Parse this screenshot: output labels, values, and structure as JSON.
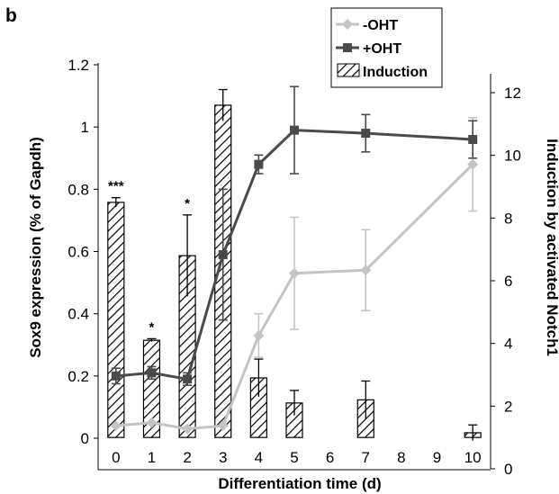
{
  "panel_label": "b",
  "colors": {
    "minus_oht": "#c4c4c4",
    "plus_oht": "#4a4a4a",
    "axis": "#000000"
  },
  "chart_data": {
    "type": "bar-line",
    "xlabel": "Differentiation time (d)",
    "ylabel": "Sox9 expression (% of Gapdh)",
    "y2label": "Induction by activated Notch1",
    "categories": [
      "0",
      "1",
      "2",
      "3",
      "4",
      "5",
      "6",
      "7",
      "8",
      "9",
      "10"
    ],
    "ylim": [
      0,
      1.2
    ],
    "yticks": [
      "0",
      "0.2",
      "0.4",
      "0.6",
      "0.8",
      "1",
      "1.2"
    ],
    "y2lim": [
      0,
      13
    ],
    "y2ticks": [
      "0",
      "2",
      "4",
      "6",
      "8",
      "10",
      "12"
    ],
    "legend": {
      "position": "top-right",
      "entries": [
        {
          "label": "-OHT",
          "marker": "diamond"
        },
        {
          "label": "+OHT",
          "marker": "square"
        },
        {
          "label": "Induction",
          "marker": "hatched"
        }
      ]
    },
    "series": [
      {
        "name": "-OHT",
        "axis": "left",
        "kind": "line",
        "marker": "diamond",
        "x": [
          "0",
          "1",
          "2",
          "3",
          "4",
          "5",
          "7",
          "10"
        ],
        "values": [
          0.04,
          0.05,
          0.03,
          0.04,
          0.33,
          0.53,
          0.54,
          0.88
        ],
        "errors": [
          0,
          0,
          0,
          0,
          0.07,
          0.18,
          0.13,
          0.15
        ]
      },
      {
        "name": "+OHT",
        "axis": "left",
        "kind": "line",
        "marker": "square",
        "x": [
          "0",
          "1",
          "2",
          "3",
          "4",
          "5",
          "7",
          "10"
        ],
        "values": [
          0.2,
          0.21,
          0.19,
          0.59,
          0.88,
          0.99,
          0.98,
          0.96
        ],
        "errors": [
          0.025,
          0.02,
          0.02,
          0.21,
          0.03,
          0.14,
          0.06,
          0.06
        ]
      },
      {
        "name": "Induction",
        "axis": "right",
        "kind": "bar",
        "pattern": "hatched",
        "x": [
          "0",
          "1",
          "2",
          "3",
          "4",
          "5",
          "7",
          "10"
        ],
        "values": [
          8.5,
          4.1,
          6.8,
          11.6,
          2.9,
          2.1,
          2.2,
          1.15
        ],
        "errors": [
          0.15,
          0.05,
          1.3,
          0.5,
          0.6,
          0.4,
          0.6,
          0.25
        ]
      }
    ],
    "annotations": [
      {
        "text": "***",
        "x": "0"
      },
      {
        "text": "*",
        "x": "1"
      },
      {
        "text": "*",
        "x": "2"
      }
    ]
  }
}
